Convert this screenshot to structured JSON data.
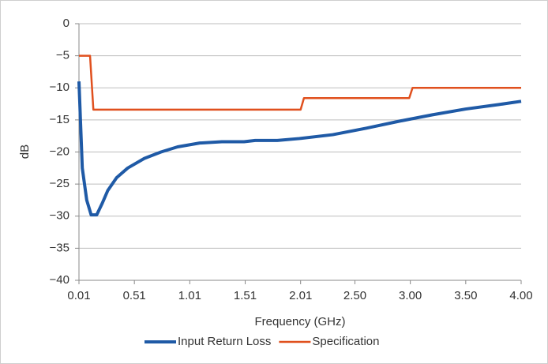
{
  "chart_data": {
    "type": "line",
    "xlabel": "Frequency (GHz)",
    "ylabel": "dB",
    "xlim": [
      0.01,
      4.0
    ],
    "xticks": [
      0.01,
      0.51,
      1.01,
      1.51,
      2.01,
      {
        "value": 2.5,
        "label": "2.50"
      },
      {
        "value": 3.0,
        "label": "3.00"
      },
      {
        "value": 3.5,
        "label": "3.50"
      },
      {
        "value": 4.0,
        "label": "4.00"
      }
    ],
    "ylim": [
      -40,
      0
    ],
    "yticks": [
      0,
      {
        "value": -5,
        "label": "−5"
      },
      {
        "value": -10,
        "label": "−10"
      },
      {
        "value": -15,
        "label": "−15"
      },
      {
        "value": -20,
        "label": "−20"
      },
      {
        "value": -25,
        "label": "−25"
      },
      {
        "value": -30,
        "label": "−30"
      },
      {
        "value": -35,
        "label": "−35"
      },
      {
        "value": -40,
        "label": "−40"
      }
    ],
    "grid": true,
    "legend": "bottom",
    "series": [
      {
        "name": "Input Return Loss",
        "color": "#1f5aa6",
        "x": [
          0.01,
          0.04,
          0.08,
          0.12,
          0.17,
          0.22,
          0.27,
          0.35,
          0.45,
          0.6,
          0.75,
          0.9,
          1.1,
          1.3,
          1.5,
          1.6,
          1.8,
          2.0,
          2.3,
          2.6,
          2.9,
          3.2,
          3.5,
          3.8,
          4.0
        ],
        "values": [
          -9,
          -22.5,
          -27.5,
          -29.8,
          -29.8,
          -28,
          -26,
          -24,
          -22.5,
          -21,
          -20,
          -19.2,
          -18.6,
          -18.4,
          -18.4,
          -18.2,
          -18.2,
          -17.9,
          -17.3,
          -16.3,
          -15.2,
          -14.2,
          -13.3,
          -12.6,
          -12.1
        ]
      },
      {
        "name": "Specification",
        "color": "#e0501e",
        "x": [
          0.01,
          0.11,
          0.14,
          2.01,
          2.04,
          2.99,
          3.02,
          4.0
        ],
        "values": [
          -5,
          -5,
          -13.4,
          -13.4,
          -11.6,
          -11.6,
          -10,
          -10
        ]
      }
    ]
  }
}
